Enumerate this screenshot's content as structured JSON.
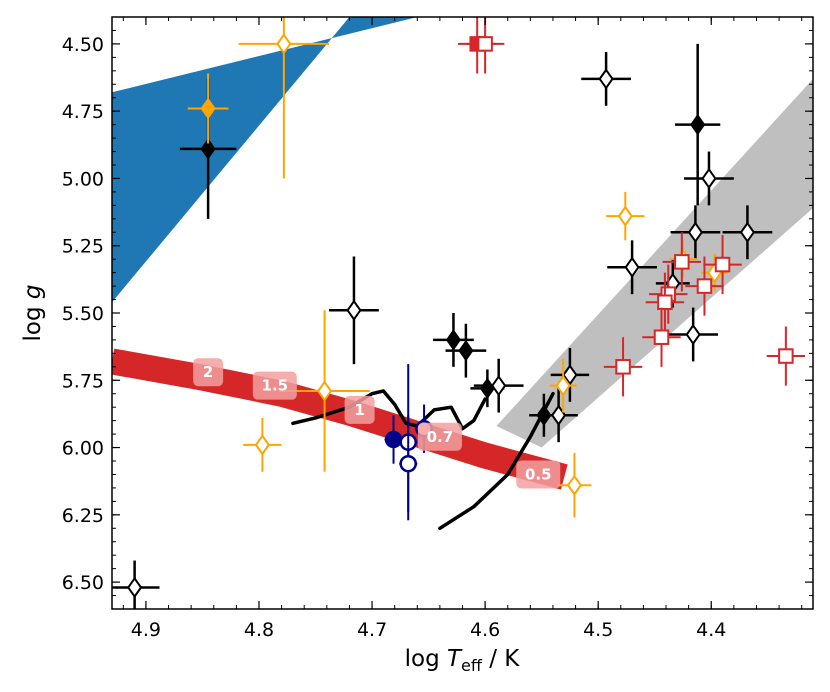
{
  "chart_data": {
    "type": "scatter",
    "title": "",
    "xlabel_main": "log ",
    "xlabel_T": "T",
    "xlabel_sub": "eff",
    "xlabel_unit": " / K",
    "ylabel_main": "log ",
    "ylabel_g": "g",
    "xlim": [
      4.93,
      4.31
    ],
    "ylim": [
      6.6,
      4.4
    ],
    "x_ticks": [
      4.9,
      4.8,
      4.7,
      4.6,
      4.5,
      4.4
    ],
    "x_tick_labels": [
      "4.9",
      "4.8",
      "4.7",
      "4.6",
      "4.5",
      "4.4"
    ],
    "y_ticks": [
      4.5,
      4.75,
      5.0,
      5.25,
      5.5,
      5.75,
      6.0,
      6.25,
      6.5
    ],
    "y_tick_labels": [
      "4.50",
      "4.75",
      "5.00",
      "5.25",
      "5.50",
      "5.75",
      "6.00",
      "6.25",
      "6.50"
    ],
    "colors": {
      "black": "#000000",
      "orange": "#ffa500",
      "red": "#d62728",
      "navy": "#00008b",
      "blue_band": "#1f77b4",
      "gray_band": "#bfbfbf",
      "red_track": "#d62728",
      "track_label_bg": "#f2a0a0"
    },
    "blue_band": [
      [
        4.93,
        4.68
      ],
      [
        4.93,
        5.46
      ],
      [
        4.72,
        4.4
      ],
      [
        4.66,
        4.4
      ]
    ],
    "gray_band": [
      [
        4.55,
        6.0
      ],
      [
        4.31,
        5.11
      ],
      [
        4.31,
        4.63
      ],
      [
        4.59,
        5.92
      ]
    ],
    "red_track": [
      [
        4.93,
        5.68
      ],
      [
        4.85,
        5.74
      ],
      [
        4.78,
        5.8
      ],
      [
        4.72,
        5.87
      ],
      [
        4.66,
        5.95
      ],
      [
        4.6,
        6.03
      ],
      [
        4.53,
        6.11
      ]
    ],
    "mass_labels": [
      {
        "x": 4.845,
        "y": 5.72,
        "text": "2"
      },
      {
        "x": 4.786,
        "y": 5.77,
        "text": "1.5"
      },
      {
        "x": 4.711,
        "y": 5.86,
        "text": "1"
      },
      {
        "x": 4.64,
        "y": 5.96,
        "text": "0.7"
      },
      {
        "x": 4.553,
        "y": 6.1,
        "text": "0.5"
      }
    ],
    "black_curves": [
      [
        [
          4.77,
          5.91
        ],
        [
          4.75,
          5.89
        ],
        [
          4.72,
          5.85
        ],
        [
          4.7,
          5.8
        ],
        [
          4.69,
          5.79
        ],
        [
          4.68,
          5.84
        ],
        [
          4.67,
          5.91
        ],
        [
          4.66,
          5.92
        ],
        [
          4.645,
          5.86
        ],
        [
          4.63,
          5.85
        ],
        [
          4.62,
          5.93
        ],
        [
          4.61,
          5.9
        ],
        [
          4.6,
          5.82
        ]
      ],
      [
        [
          4.64,
          6.3
        ],
        [
          4.61,
          6.22
        ],
        [
          4.58,
          6.1
        ],
        [
          4.56,
          5.96
        ],
        [
          4.55,
          5.88
        ],
        [
          4.54,
          5.8
        ]
      ]
    ],
    "series": [
      {
        "name": "black filled diamonds",
        "color": "#000000",
        "marker": "diamond",
        "filled": true,
        "points": [
          {
            "x": 4.845,
            "y": 4.89,
            "xerr": 0.025,
            "yerr": 0.26
          },
          {
            "x": 4.412,
            "y": 4.8,
            "xerr": 0.02,
            "yerr": 0.3
          },
          {
            "x": 4.628,
            "y": 5.6,
            "xerr": 0.018,
            "yerr": 0.1
          },
          {
            "x": 4.617,
            "y": 5.64,
            "xerr": 0.018,
            "yerr": 0.1
          },
          {
            "x": 4.598,
            "y": 5.78,
            "xerr": 0.015,
            "yerr": 0.07
          },
          {
            "x": 4.548,
            "y": 5.88,
            "xerr": 0.013,
            "yerr": 0.08
          }
        ]
      },
      {
        "name": "black open diamonds",
        "color": "#000000",
        "marker": "diamond",
        "filled": false,
        "points": [
          {
            "x": 4.91,
            "y": 6.52,
            "xerr": 0.022,
            "yerr": 0.1
          },
          {
            "x": 4.716,
            "y": 5.49,
            "xerr": 0.022,
            "yerr": 0.2
          },
          {
            "x": 4.493,
            "y": 4.63,
            "xerr": 0.022,
            "yerr": 0.1
          },
          {
            "x": 4.402,
            "y": 5.0,
            "xerr": 0.022,
            "yerr": 0.1
          },
          {
            "x": 4.47,
            "y": 5.33,
            "xerr": 0.022,
            "yerr": 0.1
          },
          {
            "x": 4.414,
            "y": 5.2,
            "xerr": 0.022,
            "yerr": 0.1
          },
          {
            "x": 4.368,
            "y": 5.2,
            "xerr": 0.022,
            "yerr": 0.1
          },
          {
            "x": 4.434,
            "y": 5.39,
            "xerr": 0.015,
            "yerr": 0.09
          },
          {
            "x": 4.416,
            "y": 5.58,
            "xerr": 0.022,
            "yerr": 0.1
          },
          {
            "x": 4.588,
            "y": 5.77,
            "xerr": 0.022,
            "yerr": 0.1
          },
          {
            "x": 4.525,
            "y": 5.73,
            "xerr": 0.017,
            "yerr": 0.1
          },
          {
            "x": 4.535,
            "y": 5.88,
            "xerr": 0.017,
            "yerr": 0.1
          }
        ]
      },
      {
        "name": "orange filled diamonds",
        "color": "#ffa500",
        "marker": "diamond",
        "filled": true,
        "points": [
          {
            "x": 4.845,
            "y": 4.74,
            "xerr": 0.018,
            "yerr": 0.13
          }
        ]
      },
      {
        "name": "orange open diamonds",
        "color": "#ffa500",
        "marker": "diamond",
        "filled": false,
        "points": [
          {
            "x": 4.778,
            "y": 4.5,
            "xerr": 0.04,
            "yerr": 0.5
          },
          {
            "x": 4.476,
            "y": 5.14,
            "xerr": 0.017,
            "yerr": 0.09
          },
          {
            "x": 4.742,
            "y": 5.79,
            "xerr": 0.04,
            "yerr": 0.3
          },
          {
            "x": 4.797,
            "y": 5.99,
            "xerr": 0.017,
            "yerr": 0.1
          },
          {
            "x": 4.521,
            "y": 6.14,
            "xerr": 0.015,
            "yerr": 0.12
          },
          {
            "x": 4.531,
            "y": 5.77,
            "xerr": 0.012,
            "yerr": 0.1
          },
          {
            "x": 4.425,
            "y": 5.3,
            "xerr": 0.012,
            "yerr": 0.07
          },
          {
            "x": 4.397,
            "y": 5.35,
            "xerr": 0.012,
            "yerr": 0.07
          }
        ]
      },
      {
        "name": "red filled squares",
        "color": "#d62728",
        "marker": "square",
        "filled": true,
        "points": [
          {
            "x": 4.607,
            "y": 4.5,
            "xerr": 0.017,
            "yerr": 0.11
          }
        ]
      },
      {
        "name": "red open squares",
        "color": "#d62728",
        "marker": "square",
        "filled": false,
        "points": [
          {
            "x": 4.6,
            "y": 4.5,
            "xerr": 0.017,
            "yerr": 0.11
          },
          {
            "x": 4.478,
            "y": 5.7,
            "xerr": 0.017,
            "yerr": 0.11
          },
          {
            "x": 4.426,
            "y": 5.31,
            "xerr": 0.017,
            "yerr": 0.11
          },
          {
            "x": 4.39,
            "y": 5.32,
            "xerr": 0.017,
            "yerr": 0.11
          },
          {
            "x": 4.406,
            "y": 5.4,
            "xerr": 0.017,
            "yerr": 0.11
          },
          {
            "x": 4.438,
            "y": 5.43,
            "xerr": 0.017,
            "yerr": 0.11
          },
          {
            "x": 4.441,
            "y": 5.46,
            "xerr": 0.017,
            "yerr": 0.11
          },
          {
            "x": 4.444,
            "y": 5.59,
            "xerr": 0.017,
            "yerr": 0.11
          },
          {
            "x": 4.334,
            "y": 5.66,
            "xerr": 0.017,
            "yerr": 0.11
          }
        ]
      },
      {
        "name": "navy filled circles",
        "color": "#00008b",
        "marker": "circle",
        "filled": true,
        "points": [
          {
            "x": 4.681,
            "y": 5.97,
            "xerr": 0.008,
            "yerr": 0.09
          }
        ]
      },
      {
        "name": "navy open circles",
        "color": "#00008b",
        "marker": "circle",
        "filled": false,
        "points": [
          {
            "x": 4.668,
            "y": 5.98,
            "xerr": 0.008,
            "yerr": 0.29
          },
          {
            "x": 4.668,
            "y": 6.06,
            "xerr": 0.008,
            "yerr": 0.18
          },
          {
            "x": 4.654,
            "y": 5.93,
            "xerr": 0.008,
            "yerr": 0.09
          }
        ]
      }
    ]
  }
}
